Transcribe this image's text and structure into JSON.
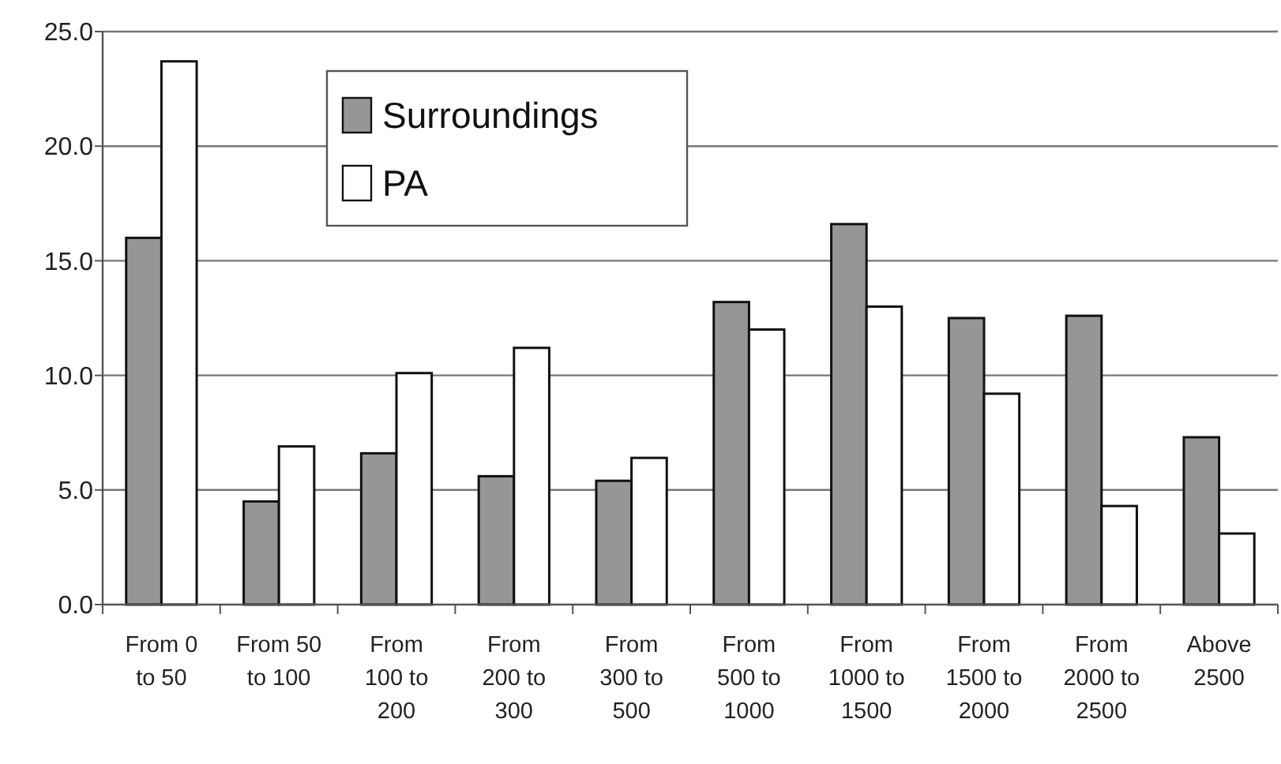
{
  "chart_data": {
    "type": "bar",
    "categories": [
      "From 0 to 50",
      "From 50 to 100",
      "From 100 to 200",
      "From 200 to 300",
      "From 300 to 500",
      "From 500 to 1000",
      "From 1000 to 1500",
      "From 1500 to 2000",
      "From 2000 to 2500",
      "Above 2500"
    ],
    "series": [
      {
        "name": "Surroundings",
        "color": "#969696",
        "values": [
          16.0,
          4.5,
          6.6,
          5.6,
          5.4,
          13.2,
          16.6,
          12.5,
          12.6,
          7.3
        ]
      },
      {
        "name": "PA",
        "color": "#ffffff",
        "values": [
          23.7,
          6.9,
          10.1,
          11.2,
          6.4,
          12.0,
          13.0,
          9.2,
          4.3,
          3.1
        ]
      }
    ],
    "ylim": [
      0,
      25
    ],
    "yticks": [
      {
        "value": 0,
        "label": "0.0"
      },
      {
        "value": 5,
        "label": "5.0"
      },
      {
        "value": 10,
        "label": "10.0"
      },
      {
        "value": 15,
        "label": "15.0"
      },
      {
        "value": 20,
        "label": "20.0"
      },
      {
        "value": 25,
        "label": "25.0"
      }
    ],
    "grid": "y",
    "legend": "top left"
  }
}
